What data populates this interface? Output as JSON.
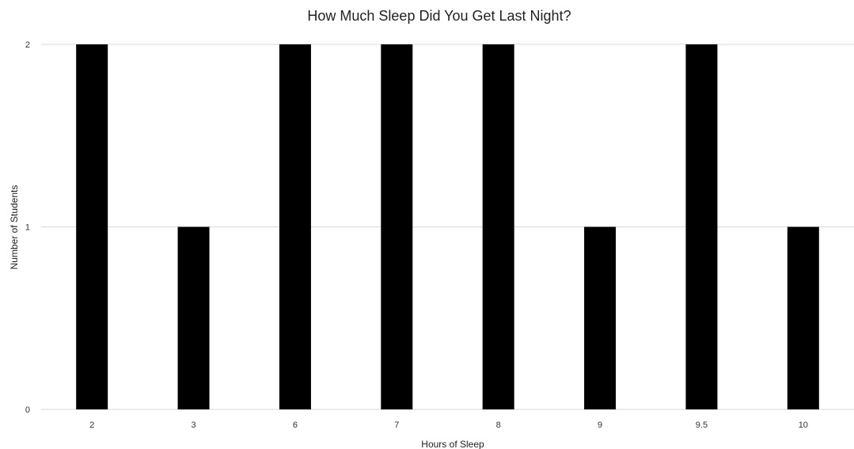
{
  "chart_data": {
    "type": "bar",
    "title": "How Much Sleep Did You Get Last Night?",
    "xlabel": "Hours of Sleep",
    "ylabel": "Number of Students",
    "categories": [
      "2",
      "3",
      "6",
      "7",
      "8",
      "9",
      "9.5",
      "10"
    ],
    "values": [
      2,
      1,
      2,
      2,
      2,
      1,
      2,
      1
    ],
    "ylim": [
      0,
      2
    ],
    "yticks": [
      "0",
      "1",
      "2"
    ],
    "grid": true,
    "legend": "none",
    "bar_color": "#000000"
  }
}
